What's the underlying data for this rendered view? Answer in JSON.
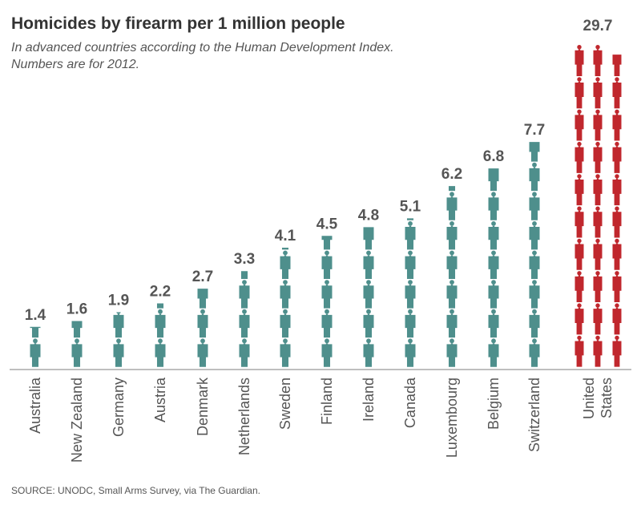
{
  "chart_data": {
    "type": "pictograph",
    "title": "Homicides by firearm per 1 million people",
    "subtitle_lines": [
      "In advanced countries according to the Human Development Index.",
      "Numbers are for 2012."
    ],
    "unit": "homicides by firearm per 1 million people",
    "icon_value": 1,
    "categories": [
      "Australia",
      "New Zealand",
      "Germany",
      "Austria",
      "Denmark",
      "Netherlands",
      "Sweden",
      "Finland",
      "Ireland",
      "Canada",
      "Luxembourg",
      "Belgium",
      "Switzerland",
      "United States"
    ],
    "value_labels": [
      "1.4",
      "1.6",
      "1.9",
      "2.2",
      "2.7",
      "3.3",
      "4.1",
      "4.5",
      "4.8",
      "5.1",
      "6.2",
      "6.8",
      "7.7",
      "29.7"
    ],
    "values": [
      1.4,
      1.6,
      1.9,
      2.2,
      2.7,
      3.3,
      4.1,
      4.5,
      4.8,
      5.1,
      6.2,
      6.8,
      7.7,
      29.7
    ],
    "category_label_lines": [
      [
        "Australia"
      ],
      [
        "New Zealand"
      ],
      [
        "Germany"
      ],
      [
        "Austria"
      ],
      [
        "Denmark"
      ],
      [
        "Netherlands"
      ],
      [
        "Sweden"
      ],
      [
        "Finland"
      ],
      [
        "Ireland"
      ],
      [
        "Canada"
      ],
      [
        "Luxembourg"
      ],
      [
        "Belgium"
      ],
      [
        "Switzerland"
      ],
      [
        "United",
        "States"
      ]
    ],
    "highlight_category": "United States",
    "colors": {
      "default": "#4e8f8c",
      "highlight": "#c0272d",
      "baseline": "#aaaaaa"
    },
    "source": "SOURCE: UNODC, Small Arms Survey, via The Guardian."
  }
}
